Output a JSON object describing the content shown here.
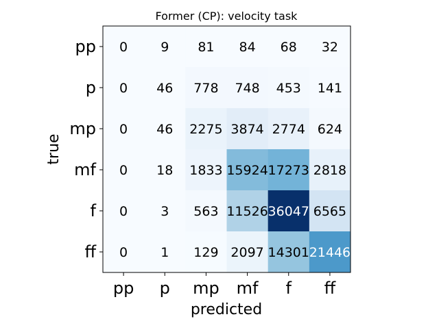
{
  "chart_data": {
    "type": "heatmap",
    "title": "Former (CP): velocity task",
    "xlabel": "predicted",
    "ylabel": "true",
    "x_categories": [
      "pp",
      "p",
      "mp",
      "mf",
      "f",
      "ff"
    ],
    "y_categories": [
      "pp",
      "p",
      "mp",
      "mf",
      "f",
      "ff"
    ],
    "matrix": [
      [
        0,
        9,
        81,
        84,
        68,
        32
      ],
      [
        0,
        46,
        778,
        748,
        453,
        141
      ],
      [
        0,
        46,
        2275,
        3874,
        2774,
        624
      ],
      [
        0,
        18,
        1833,
        15924,
        17273,
        2818
      ],
      [
        0,
        3,
        563,
        11526,
        36047,
        6565
      ],
      [
        0,
        1,
        129,
        2097,
        14301,
        21446
      ]
    ],
    "colormap": "Blues",
    "value_range": [
      0,
      36047
    ],
    "colorbar": false,
    "grid": false
  }
}
